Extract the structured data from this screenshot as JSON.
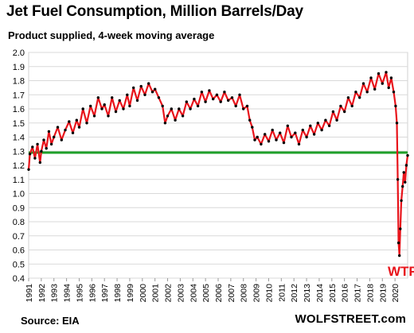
{
  "chart_data": {
    "type": "line",
    "title": "Jet Fuel Consumption,  Million Barrels/Day",
    "subtitle": "Product supplied, 4-week moving average",
    "xlabel": "",
    "ylabel": "",
    "xlim": [
      1991,
      2021
    ],
    "ylim": [
      0.4,
      2.0
    ],
    "y_ticks": [
      "0.4",
      "0.5",
      "0.6",
      "0.7",
      "0.8",
      "0.9",
      "1.0",
      "1.1",
      "1.2",
      "1.3",
      "1.4",
      "1.5",
      "1.6",
      "1.7",
      "1.8",
      "1.9",
      "2.0"
    ],
    "x_ticks": [
      "1991",
      "1992",
      "1993",
      "1994",
      "1995",
      "1996",
      "1997",
      "1998",
      "1999",
      "2000",
      "2001",
      "2002",
      "2003",
      "2004",
      "2005",
      "2006",
      "2007",
      "2008",
      "2009",
      "2010",
      "2011",
      "2012",
      "2013",
      "2014",
      "2015",
      "2016",
      "2017",
      "2018",
      "2019",
      "2020"
    ],
    "grid": "horizontal",
    "reference_line": {
      "value": 1.29,
      "color": "#1fa02a"
    },
    "series": [
      {
        "color": "#e8141b",
        "marker_color": "#000000",
        "x": [
          1991.0,
          1991.1,
          1991.3,
          1991.5,
          1991.7,
          1991.9,
          1992.0,
          1992.2,
          1992.4,
          1992.6,
          1992.8,
          1993.0,
          1993.3,
          1993.6,
          1993.9,
          1994.2,
          1994.5,
          1994.8,
          1995.0,
          1995.3,
          1995.6,
          1995.9,
          1996.2,
          1996.5,
          1996.8,
          1997.0,
          1997.3,
          1997.6,
          1997.9,
          1998.2,
          1998.5,
          1998.8,
          1999.0,
          1999.3,
          1999.6,
          1999.9,
          2000.2,
          2000.5,
          2000.8,
          2001.0,
          2001.3,
          2001.6,
          2001.8,
          2002.0,
          2002.3,
          2002.6,
          2002.9,
          2003.2,
          2003.5,
          2003.8,
          2004.1,
          2004.4,
          2004.7,
          2005.0,
          2005.3,
          2005.6,
          2005.9,
          2006.2,
          2006.5,
          2006.8,
          2007.1,
          2007.4,
          2007.7,
          2008.0,
          2008.3,
          2008.5,
          2008.7,
          2008.9,
          2009.1,
          2009.4,
          2009.7,
          2010.0,
          2010.3,
          2010.6,
          2010.9,
          2011.2,
          2011.5,
          2011.8,
          2012.1,
          2012.4,
          2012.7,
          2013.0,
          2013.3,
          2013.6,
          2013.9,
          2014.2,
          2014.5,
          2014.8,
          2015.1,
          2015.4,
          2015.7,
          2016.0,
          2016.3,
          2016.6,
          2016.9,
          2017.2,
          2017.5,
          2017.8,
          2018.1,
          2018.4,
          2018.7,
          2019.0,
          2019.3,
          2019.5,
          2019.7,
          2019.9,
          2020.05,
          2020.15,
          2020.22,
          2020.28,
          2020.35,
          2020.42,
          2020.5,
          2020.6,
          2020.7,
          2020.8,
          2020.9,
          2021.0
        ],
        "y": [
          1.17,
          1.28,
          1.33,
          1.25,
          1.35,
          1.22,
          1.3,
          1.38,
          1.32,
          1.44,
          1.35,
          1.4,
          1.47,
          1.38,
          1.45,
          1.51,
          1.43,
          1.52,
          1.47,
          1.6,
          1.5,
          1.62,
          1.55,
          1.68,
          1.6,
          1.63,
          1.55,
          1.68,
          1.58,
          1.66,
          1.6,
          1.7,
          1.62,
          1.75,
          1.66,
          1.76,
          1.7,
          1.78,
          1.72,
          1.74,
          1.68,
          1.62,
          1.5,
          1.55,
          1.6,
          1.52,
          1.6,
          1.55,
          1.65,
          1.6,
          1.67,
          1.62,
          1.72,
          1.65,
          1.73,
          1.67,
          1.7,
          1.65,
          1.72,
          1.66,
          1.68,
          1.62,
          1.7,
          1.6,
          1.62,
          1.52,
          1.47,
          1.38,
          1.4,
          1.35,
          1.42,
          1.37,
          1.45,
          1.38,
          1.43,
          1.36,
          1.48,
          1.4,
          1.43,
          1.35,
          1.45,
          1.4,
          1.48,
          1.42,
          1.5,
          1.45,
          1.52,
          1.48,
          1.58,
          1.52,
          1.62,
          1.58,
          1.68,
          1.62,
          1.72,
          1.68,
          1.78,
          1.72,
          1.82,
          1.74,
          1.85,
          1.78,
          1.86,
          1.75,
          1.82,
          1.72,
          1.62,
          1.5,
          1.1,
          0.65,
          0.56,
          0.75,
          0.95,
          1.05,
          1.15,
          1.08,
          1.2,
          1.27
        ]
      }
    ]
  },
  "annotation": "WTF",
  "source": "Source: EIA",
  "brand": "WOLFSTREET.com"
}
